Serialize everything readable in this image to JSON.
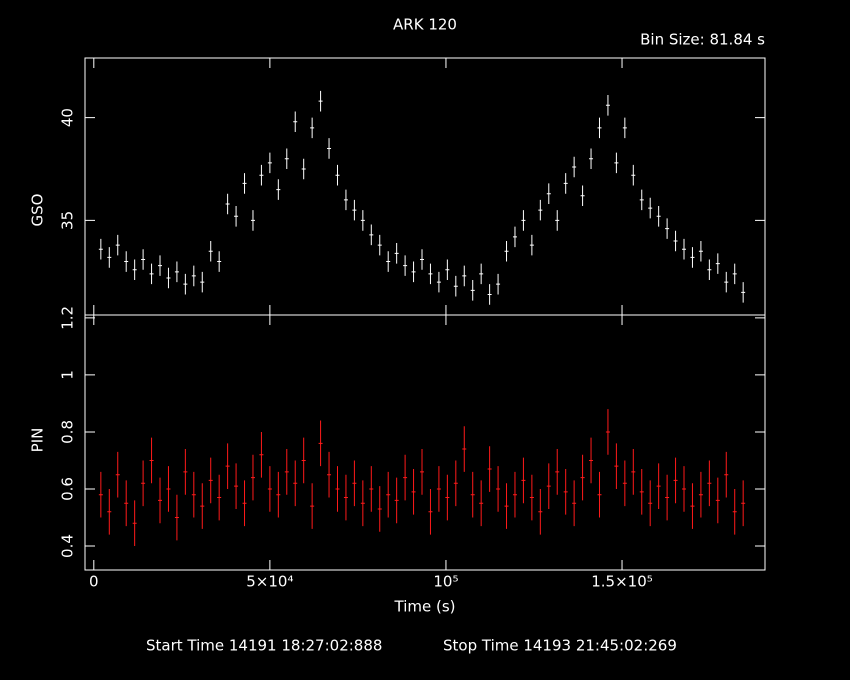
{
  "chart_data": [
    {
      "type": "errorbar",
      "title": "ARK 120",
      "annotation": "Bin Size: 81.84 s",
      "ylabel": "GSO",
      "color": "#ffffff",
      "xlim": [
        -2500,
        190600
      ],
      "xticks": [
        0,
        50000,
        100000,
        150000
      ],
      "ylim": [
        30.4,
        42.9
      ],
      "yticks": [
        35,
        40
      ],
      "x": [
        2000,
        4400,
        6800,
        9200,
        11600,
        14000,
        16400,
        18800,
        21200,
        23600,
        26000,
        28400,
        30800,
        33200,
        35600,
        38000,
        40400,
        42800,
        45200,
        47600,
        50000,
        52400,
        54800,
        57200,
        59600,
        62000,
        64400,
        66800,
        69200,
        71600,
        74000,
        76400,
        78800,
        81200,
        83600,
        86000,
        88400,
        90800,
        93200,
        95600,
        98000,
        100400,
        102800,
        105200,
        107600,
        110000,
        112400,
        114800,
        117200,
        119600,
        122000,
        124400,
        126800,
        129200,
        131600,
        134000,
        136400,
        138800,
        141200,
        143600,
        146000,
        148400,
        150800,
        153200,
        155600,
        158000,
        160400,
        162800,
        165200,
        167600,
        170000,
        172400,
        174800,
        177200,
        179600,
        182000,
        184400
      ],
      "values": [
        33.6,
        33.2,
        33.8,
        33.0,
        32.6,
        33.1,
        32.4,
        32.8,
        32.2,
        32.5,
        31.9,
        32.3,
        32.0,
        33.5,
        33.0,
        35.8,
        35.2,
        36.8,
        35.0,
        37.2,
        37.8,
        36.5,
        38.0,
        39.8,
        37.5,
        39.5,
        40.8,
        38.5,
        37.2,
        36.0,
        35.5,
        35.0,
        34.3,
        33.8,
        33.0,
        33.4,
        32.8,
        32.5,
        33.1,
        32.4,
        32.0,
        32.6,
        31.8,
        32.3,
        31.6,
        32.4,
        31.4,
        31.9,
        33.5,
        34.2,
        35.0,
        33.8,
        35.5,
        36.3,
        35.0,
        36.8,
        37.6,
        36.2,
        38.0,
        39.5,
        40.6,
        37.8,
        39.5,
        37.2,
        36.0,
        35.6,
        35.2,
        34.6,
        34.0,
        33.6,
        33.2,
        33.5,
        32.6,
        32.9,
        32.0,
        32.4,
        31.5
      ],
      "error": 0.5
    },
    {
      "type": "errorbar",
      "ylabel": "PIN",
      "xlabel": "Time (s)",
      "color": "#ff1a1a",
      "footer": [
        "Start Time 14191 18:27:02:888",
        "Stop Time 14193 21:45:02:269"
      ],
      "xlim": [
        -2500,
        190600
      ],
      "xticks": [
        0,
        {
          "value": 50000,
          "label": "5×10⁴"
        },
        {
          "value": 100000,
          "label": "10⁵"
        },
        {
          "value": 150000,
          "label": "1.5×10⁵"
        }
      ],
      "ylim": [
        0.316,
        1.21
      ],
      "yticks": [
        0.4,
        0.6,
        0.8,
        1,
        1.2
      ],
      "x": [
        2000,
        4400,
        6800,
        9200,
        11600,
        14000,
        16400,
        18800,
        21200,
        23600,
        26000,
        28400,
        30800,
        33200,
        35600,
        38000,
        40400,
        42800,
        45200,
        47600,
        50000,
        52400,
        54800,
        57200,
        59600,
        62000,
        64400,
        66800,
        69200,
        71600,
        74000,
        76400,
        78800,
        81200,
        83600,
        86000,
        88400,
        90800,
        93200,
        95600,
        98000,
        100400,
        102800,
        105200,
        107600,
        110000,
        112400,
        114800,
        117200,
        119600,
        122000,
        124400,
        126800,
        129200,
        131600,
        134000,
        136400,
        138800,
        141200,
        143600,
        146000,
        148400,
        150800,
        153200,
        155600,
        158000,
        160400,
        162800,
        165200,
        167600,
        170000,
        172400,
        174800,
        177200,
        179600,
        182000,
        184400
      ],
      "values": [
        0.58,
        0.52,
        0.65,
        0.55,
        0.48,
        0.62,
        0.7,
        0.56,
        0.6,
        0.5,
        0.66,
        0.58,
        0.54,
        0.63,
        0.57,
        0.68,
        0.61,
        0.55,
        0.64,
        0.72,
        0.6,
        0.58,
        0.66,
        0.62,
        0.7,
        0.54,
        0.76,
        0.65,
        0.6,
        0.57,
        0.62,
        0.55,
        0.6,
        0.53,
        0.58,
        0.56,
        0.64,
        0.59,
        0.66,
        0.52,
        0.6,
        0.57,
        0.62,
        0.74,
        0.58,
        0.55,
        0.67,
        0.6,
        0.54,
        0.58,
        0.63,
        0.57,
        0.52,
        0.61,
        0.66,
        0.59,
        0.55,
        0.64,
        0.7,
        0.58,
        0.8,
        0.68,
        0.62,
        0.66,
        0.59,
        0.55,
        0.61,
        0.57,
        0.63,
        0.6,
        0.54,
        0.58,
        0.62,
        0.56,
        0.65,
        0.52,
        0.55
      ],
      "error": 0.08
    }
  ]
}
